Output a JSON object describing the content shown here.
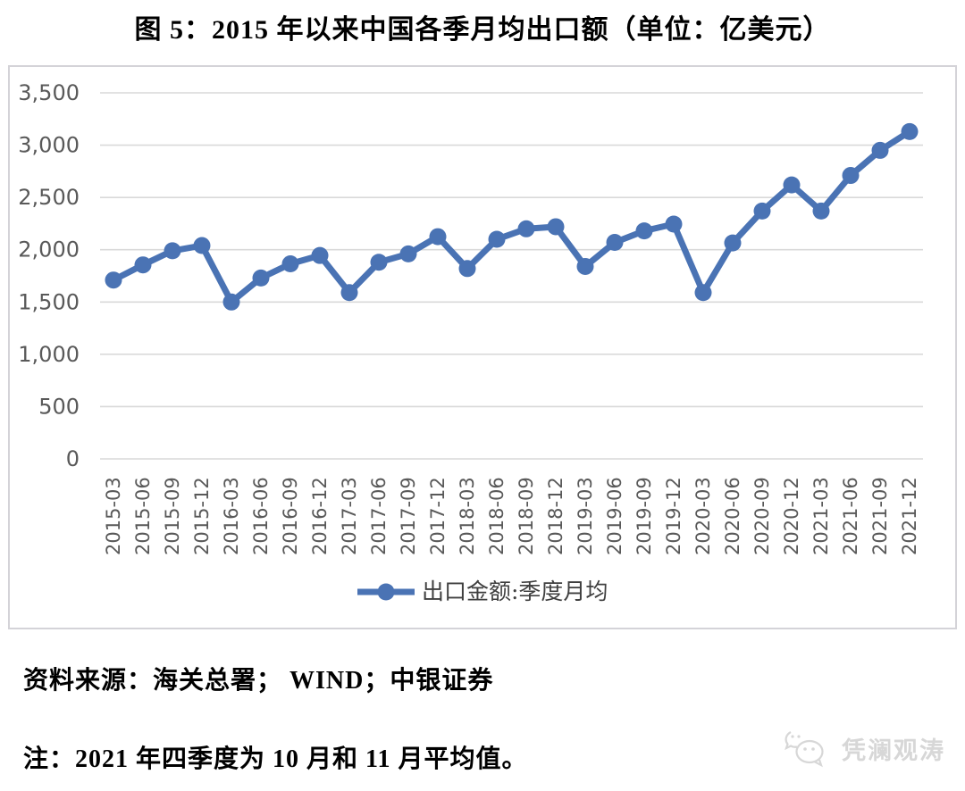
{
  "title": "图 5：2015 年以来中国各季月均出口额（单位：亿美元）",
  "chart_data": {
    "type": "line",
    "title": "图 5：2015 年以来中国各季月均出口额（单位：亿美元）",
    "unit": "亿美元",
    "categories": [
      "2015-03",
      "2015-06",
      "2015-09",
      "2015-12",
      "2016-03",
      "2016-06",
      "2016-09",
      "2016-12",
      "2017-03",
      "2017-06",
      "2017-09",
      "2017-12",
      "2018-03",
      "2018-06",
      "2018-09",
      "2018-12",
      "2019-03",
      "2019-06",
      "2019-09",
      "2019-12",
      "2020-03",
      "2020-06",
      "2020-09",
      "2020-12",
      "2021-03",
      "2021-06",
      "2021-09",
      "2021-12"
    ],
    "series": [
      {
        "name": "出口金额:季度月均",
        "values": [
          1710,
          1855,
          1990,
          2040,
          1500,
          1730,
          1865,
          1945,
          1590,
          1880,
          1960,
          2125,
          1820,
          2100,
          2200,
          2220,
          1840,
          2070,
          2180,
          2245,
          1590,
          2065,
          2370,
          2620,
          2370,
          2710,
          2950,
          3130
        ],
        "color": "#4a73b4"
      }
    ],
    "xlabel": "",
    "ylabel": "",
    "ylim": [
      0,
      3500
    ],
    "ytick_interval": 500,
    "ytick_labels": [
      "0",
      "500",
      "1,000",
      "1,500",
      "2,000",
      "2,500",
      "3,000",
      "3,500"
    ],
    "grid": true,
    "grid_color": "#d9d9d9",
    "axis_label_color": "#595959",
    "legend_position": "bottom",
    "legend_text_color": "#3f3f3f"
  },
  "footer": {
    "source": "资料来源：海关总署； WIND；中银证券",
    "note": "注：2021 年四季度为 10 月和 11 月平均值。"
  },
  "watermark": {
    "text": "凭澜观涛",
    "icon": "wechat-logo-icon",
    "color": "#d7d7d7"
  }
}
